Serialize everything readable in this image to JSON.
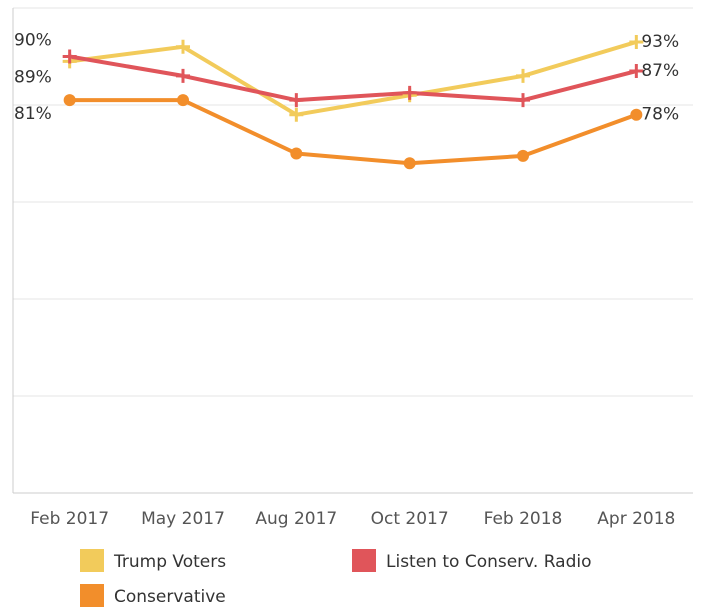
{
  "chart_data": {
    "type": "line",
    "categories": [
      "Feb 2017",
      "May 2017",
      "Aug 2017",
      "Oct 2017",
      "Feb 2018",
      "Apr 2018"
    ],
    "series": [
      {
        "name": "Trump Voters",
        "color": "#f2cb5b",
        "marker": "plus",
        "values": [
          89,
          92,
          78,
          82,
          86,
          93
        ],
        "value_labels": [
          "89%",
          null,
          null,
          null,
          null,
          "93%"
        ]
      },
      {
        "name": "Listen to Conserv. Radio",
        "color": "#e0555a",
        "marker": "plus",
        "values": [
          90,
          86,
          81,
          82.5,
          81,
          87
        ],
        "value_labels": [
          "90%",
          null,
          null,
          null,
          null,
          "87%"
        ]
      },
      {
        "name": "Conservative",
        "color": "#f28e2b",
        "marker": "circle",
        "values": [
          81,
          81,
          70,
          68,
          69.5,
          78
        ],
        "value_labels": [
          "81%",
          null,
          null,
          null,
          null,
          "78%"
        ]
      }
    ],
    "ylim": [
      0,
      100
    ],
    "yticks": [
      0,
      20,
      40,
      60,
      80,
      100
    ],
    "grid": true
  }
}
